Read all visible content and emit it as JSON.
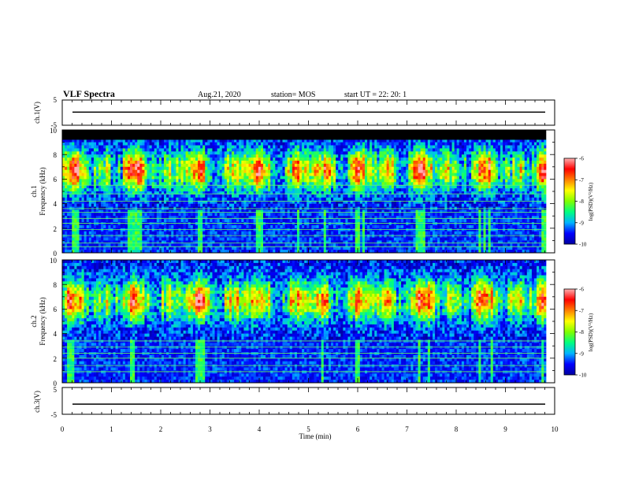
{
  "header": {
    "title": "VLF Spectra",
    "date": "Aug.21, 2020",
    "station": "station= MOS",
    "start": "start  UT =   22: 20: 1"
  },
  "chart_data": [
    {
      "type": "line",
      "name": "ch1-waveform",
      "ylabel": "ch.1(V)",
      "ylim": [
        -5,
        5
      ],
      "yticks": [
        "5",
        "-5"
      ],
      "xlim": [
        0,
        10
      ],
      "trace_level": 0.2
    },
    {
      "type": "heatmap",
      "name": "ch1-spectrogram",
      "ylabel_channel": "ch.1",
      "ylabel": "Frequency (kHz)",
      "ylim": [
        0,
        10
      ],
      "yticks": [
        "0",
        "2",
        "4",
        "6",
        "8",
        "10"
      ],
      "xlim": [
        0,
        10
      ],
      "time_span_min": 9.83,
      "hum_lines_khz": [
        0.5,
        0.8,
        1.4,
        1.9,
        2.4,
        2.8,
        3.3,
        3.6,
        4.2,
        4.8,
        5.5
      ],
      "saturated_band_khz": [
        9.2,
        10
      ],
      "colorbar": {
        "label": "log(PSD)(V²/Hz)",
        "ticks": [
          "-6",
          "-7",
          "-8",
          "-9",
          "-10"
        ],
        "range": [
          -10,
          -6
        ]
      }
    },
    {
      "type": "heatmap",
      "name": "ch2-spectrogram",
      "ylabel_channel": "ch.2",
      "ylabel": "Frequency (kHz)",
      "ylim": [
        0,
        10
      ],
      "yticks": [
        "0",
        "2",
        "4",
        "6",
        "8",
        "10"
      ],
      "xlim": [
        0,
        10
      ],
      "time_span_min": 9.83,
      "hum_lines_khz": [
        0.9,
        1.4,
        2.0,
        2.4,
        2.9,
        3.4
      ],
      "colorbar": {
        "label": "log(PSD)(V²/Hz)",
        "ticks": [
          "-6",
          "-7",
          "-8",
          "-9",
          "-10"
        ],
        "range": [
          -10,
          -6
        ]
      }
    },
    {
      "type": "line",
      "name": "ch3-waveform",
      "ylabel": "ch.3(V)",
      "ylim": [
        -5,
        5
      ],
      "yticks": [
        "5",
        "-5"
      ],
      "xlim": [
        0,
        10
      ],
      "xlabel": "Time (min)",
      "xticks": [
        "0",
        "1",
        "2",
        "3",
        "4",
        "5",
        "6",
        "7",
        "8",
        "9",
        "10"
      ],
      "trace_level": -1.2
    }
  ],
  "colors": {
    "colormap": [
      "#0000a0",
      "#0000ff",
      "#00b4ff",
      "#00ff80",
      "#80ff00",
      "#ffff00",
      "#ff8000",
      "#ff0000",
      "#ffb0b0"
    ],
    "saturated": "#000000",
    "hum_line": "#60ff60"
  }
}
